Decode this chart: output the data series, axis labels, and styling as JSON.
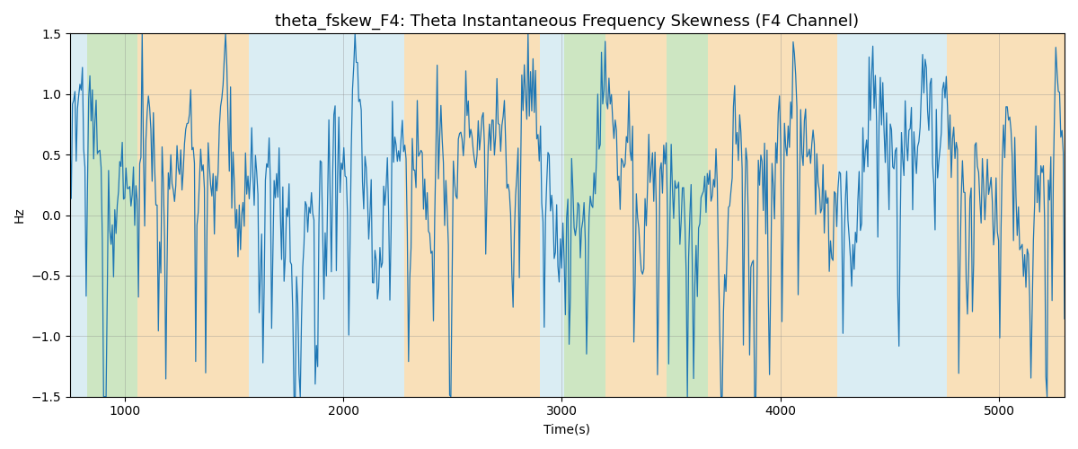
{
  "title": "theta_fskew_F4: Theta Instantaneous Frequency Skewness (F4 Channel)",
  "xlabel": "Time(s)",
  "ylabel": "Hz",
  "ylim": [
    -1.5,
    1.5
  ],
  "x_start": 750,
  "x_end": 5300,
  "bg_bands": [
    {
      "xmin": 750,
      "xmax": 830,
      "color": "#add8e6",
      "alpha": 0.45
    },
    {
      "xmin": 830,
      "xmax": 1060,
      "color": "#90c878",
      "alpha": 0.45
    },
    {
      "xmin": 1060,
      "xmax": 1570,
      "color": "#f5c880",
      "alpha": 0.55
    },
    {
      "xmin": 1570,
      "xmax": 2280,
      "color": "#add8e6",
      "alpha": 0.45
    },
    {
      "xmin": 2280,
      "xmax": 2900,
      "color": "#f5c880",
      "alpha": 0.55
    },
    {
      "xmin": 2900,
      "xmax": 3010,
      "color": "#add8e6",
      "alpha": 0.45
    },
    {
      "xmin": 3010,
      "xmax": 3200,
      "color": "#90c878",
      "alpha": 0.45
    },
    {
      "xmin": 3200,
      "xmax": 3480,
      "color": "#f5c880",
      "alpha": 0.55
    },
    {
      "xmin": 3480,
      "xmax": 3670,
      "color": "#90c878",
      "alpha": 0.45
    },
    {
      "xmin": 3670,
      "xmax": 4260,
      "color": "#f5c880",
      "alpha": 0.55
    },
    {
      "xmin": 4260,
      "xmax": 4760,
      "color": "#add8e6",
      "alpha": 0.45
    },
    {
      "xmin": 4760,
      "xmax": 5300,
      "color": "#f5c880",
      "alpha": 0.55
    }
  ],
  "line_color": "#1f77b4",
  "line_width": 0.9,
  "grid_color": "#888888",
  "grid_alpha": 0.4,
  "title_fontsize": 13,
  "yticks": [
    -1.5,
    -1.0,
    -0.5,
    0.0,
    0.5,
    1.0,
    1.5
  ],
  "signal_seed": 1234,
  "n_points": 800
}
